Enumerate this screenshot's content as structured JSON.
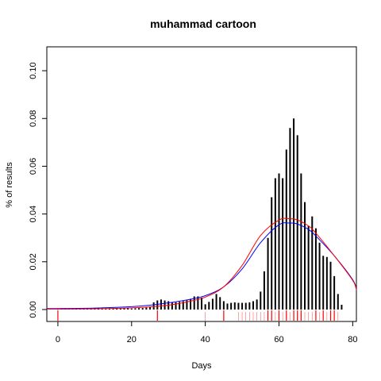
{
  "chart_data": {
    "type": "bar",
    "title": "muhammad cartoon",
    "xlabel": "Days",
    "ylabel": "% of results",
    "xlim": [
      -3,
      81
    ],
    "ylim": [
      -0.005,
      0.11
    ],
    "xticks": [
      0,
      20,
      40,
      60,
      80
    ],
    "yticks": [
      0.0,
      0.02,
      0.04,
      0.06,
      0.08,
      0.1
    ],
    "ytick_labels": [
      "0.00",
      "0.02",
      "0.04",
      "0.06",
      "0.08",
      "0.10"
    ],
    "grid": false,
    "legend": "none",
    "colors": {
      "bars": "#000000",
      "rug": "#ff0000",
      "curve_blue": "#0000ff",
      "curve_red": "#ff0000",
      "box": "#000000"
    },
    "bars": {
      "x": [
        0,
        1,
        2,
        3,
        4,
        5,
        6,
        7,
        8,
        9,
        10,
        11,
        12,
        13,
        14,
        15,
        16,
        17,
        18,
        19,
        20,
        21,
        22,
        23,
        24,
        25,
        26,
        27,
        28,
        29,
        30,
        31,
        32,
        33,
        34,
        35,
        36,
        37,
        38,
        39,
        40,
        41,
        42,
        43,
        44,
        45,
        46,
        47,
        48,
        49,
        50,
        51,
        52,
        53,
        54,
        55,
        56,
        57,
        58,
        59,
        60,
        61,
        62,
        63,
        64,
        65,
        66,
        67,
        68,
        69,
        70,
        71,
        72,
        73,
        74,
        75,
        76,
        77
      ],
      "values": [
        0.0002,
        0.0002,
        0.0002,
        0.0002,
        0.0002,
        0.0003,
        0.0003,
        0.0003,
        0.0004,
        0.0004,
        0.0005,
        0.0004,
        0.0004,
        0.0004,
        0.0004,
        0.0003,
        0.0004,
        0.0004,
        0.0005,
        0.0005,
        0.0004,
        0.0005,
        0.0006,
        0.0006,
        0.0008,
        0.001,
        0.003,
        0.0038,
        0.0042,
        0.0038,
        0.0035,
        0.003,
        0.003,
        0.0032,
        0.0035,
        0.0038,
        0.0045,
        0.0055,
        0.0055,
        0.005,
        0.0022,
        0.0032,
        0.0045,
        0.0065,
        0.0052,
        0.0035,
        0.0025,
        0.0028,
        0.003,
        0.0028,
        0.0028,
        0.0028,
        0.003,
        0.0035,
        0.0042,
        0.0075,
        0.016,
        0.03,
        0.047,
        0.055,
        0.057,
        0.055,
        0.067,
        0.076,
        0.08,
        0.073,
        0.057,
        0.045,
        0.035,
        0.039,
        0.034,
        0.028,
        0.0225,
        0.022,
        0.02,
        0.014,
        0.0065,
        0.002
      ]
    },
    "rug_x": [
      27,
      40,
      45,
      49,
      50,
      51,
      52,
      53,
      54,
      55,
      56,
      57,
      58,
      59,
      60,
      61,
      62,
      63,
      64,
      65,
      66,
      67,
      68,
      69,
      70,
      71,
      72,
      73,
      74,
      75,
      76
    ],
    "rug_major_x": [
      0,
      27,
      45,
      57,
      58,
      60,
      62,
      64,
      65,
      66,
      70,
      72,
      74,
      75
    ],
    "curves": [
      {
        "color": "blue",
        "x": [
          -3,
          0,
          10,
          20,
          25,
          30,
          35,
          40,
          45,
          50,
          55,
          60,
          63,
          65,
          68,
          70,
          75,
          80,
          81
        ],
        "y": [
          0.0004,
          0.0004,
          0.0006,
          0.0012,
          0.0018,
          0.0028,
          0.004,
          0.0058,
          0.0095,
          0.017,
          0.028,
          0.0355,
          0.0362,
          0.0358,
          0.0335,
          0.0308,
          0.0225,
          0.0125,
          0.0085
        ]
      },
      {
        "color": "red",
        "x": [
          -3,
          0,
          10,
          20,
          25,
          30,
          35,
          40,
          45,
          50,
          55,
          60,
          63,
          65,
          68,
          70,
          75,
          80,
          81
        ],
        "y": [
          0.0002,
          0.0002,
          0.0003,
          0.0007,
          0.0011,
          0.0018,
          0.0032,
          0.0052,
          0.0095,
          0.0185,
          0.031,
          0.0375,
          0.038,
          0.0375,
          0.035,
          0.032,
          0.0225,
          0.0122,
          0.0082
        ]
      }
    ]
  }
}
